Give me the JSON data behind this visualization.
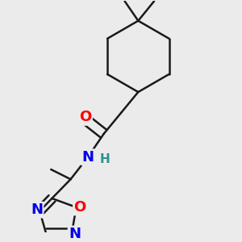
{
  "bg_color": "#ebebeb",
  "bond_color": "#1a1a1a",
  "bond_width": 1.8,
  "atom_colors": {
    "O": "#ff0000",
    "N": "#0000ee",
    "H": "#2f9090"
  },
  "font_size_atom": 13
}
